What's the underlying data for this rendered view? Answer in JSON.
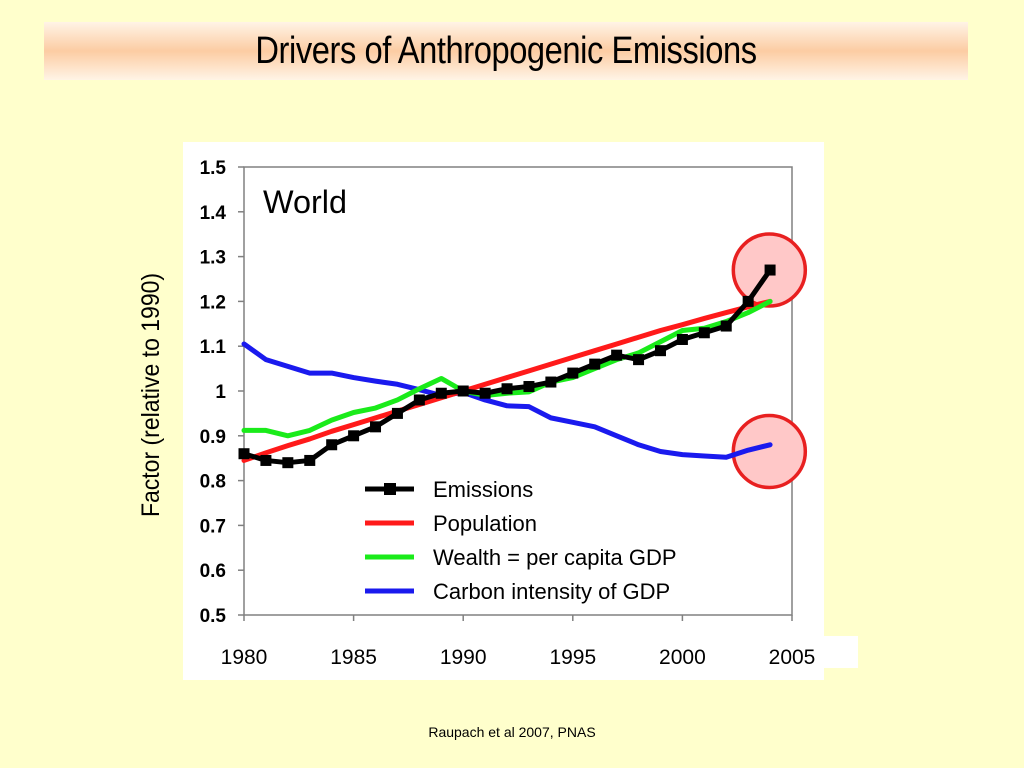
{
  "slide": {
    "title": "Drivers of Anthropogenic Emissions",
    "citation": "Raupach et al 2007, PNAS"
  },
  "colors": {
    "background": "#ffffcc",
    "emissions": "#000000",
    "population": "#ff1a1a",
    "wealth": "#1aeb1a",
    "carbon_intensity": "#1a1aee",
    "highlight_circle_stroke": "#e82020",
    "highlight_circle_fill": "#ffc8c8"
  },
  "chart_data": {
    "type": "line",
    "title": "",
    "annotation": "World",
    "xlabel": "",
    "ylabel": "Factor (relative to 1990)",
    "xlim": [
      1980,
      2005
    ],
    "ylim": [
      0.5,
      1.5
    ],
    "xticks": [
      "1980",
      "1985",
      "1990",
      "1995",
      "2000",
      "2005"
    ],
    "yticks": [
      "0.5",
      "0.6",
      "0.7",
      "0.8",
      "0.9",
      "1",
      "1.1",
      "1.2",
      "1.3",
      "1.4",
      "1.5"
    ],
    "grid": false,
    "legend_position": "bottom-center",
    "x": [
      1980,
      1981,
      1982,
      1983,
      1984,
      1985,
      1986,
      1987,
      1988,
      1989,
      1990,
      1991,
      1992,
      1993,
      1994,
      1995,
      1996,
      1997,
      1998,
      1999,
      2000,
      2001,
      2002,
      2003,
      2004
    ],
    "series": [
      {
        "name": "Emissions",
        "key": "emissions",
        "marker": "square",
        "values": [
          0.86,
          0.845,
          0.84,
          0.845,
          0.88,
          0.9,
          0.92,
          0.95,
          0.98,
          0.995,
          1.0,
          0.995,
          1.005,
          1.01,
          1.02,
          1.04,
          1.06,
          1.08,
          1.07,
          1.09,
          1.115,
          1.13,
          1.145,
          1.2,
          1.27
        ]
      },
      {
        "name": "Population",
        "key": "population",
        "values": [
          0.845,
          0.862,
          0.878,
          0.893,
          0.91,
          0.925,
          0.94,
          0.955,
          0.97,
          0.985,
          1.0,
          1.015,
          1.03,
          1.045,
          1.06,
          1.075,
          1.09,
          1.105,
          1.12,
          1.135,
          1.148,
          1.162,
          1.175,
          1.188,
          1.2
        ]
      },
      {
        "name": "Wealth = per capita GDP",
        "key": "wealth",
        "values": [
          0.912,
          0.912,
          0.9,
          0.912,
          0.935,
          0.952,
          0.962,
          0.98,
          1.005,
          1.028,
          1.0,
          0.99,
          0.995,
          0.998,
          1.02,
          1.03,
          1.05,
          1.07,
          1.085,
          1.11,
          1.135,
          1.14,
          1.155,
          1.175,
          1.2
        ]
      },
      {
        "name": "Carbon intensity of GDP",
        "key": "carbon_intensity",
        "values": [
          1.105,
          1.07,
          1.055,
          1.04,
          1.04,
          1.03,
          1.022,
          1.015,
          1.003,
          0.99,
          0.997,
          0.98,
          0.967,
          0.965,
          0.94,
          0.93,
          0.92,
          0.9,
          0.88,
          0.865,
          0.858,
          0.855,
          0.852,
          0.868,
          0.88
        ]
      }
    ],
    "highlights": [
      {
        "x": 2003.6,
        "y": 1.27,
        "label": "emissions-surge"
      },
      {
        "x": 2003.6,
        "y": 0.865,
        "label": "carbon-intensity-rise"
      }
    ]
  }
}
